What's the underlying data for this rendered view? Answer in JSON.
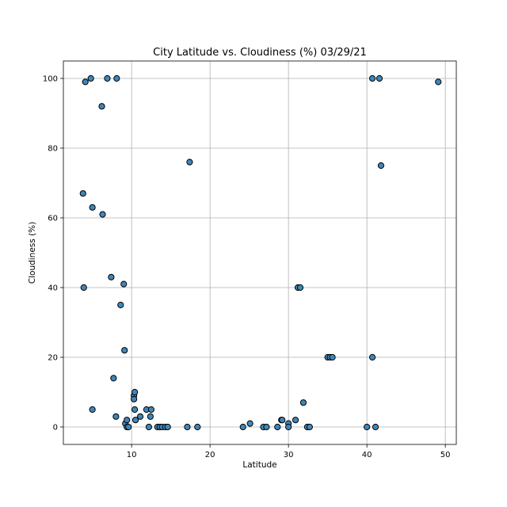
{
  "chart_data": {
    "type": "scatter",
    "title": "City Latitude vs. Cloudiness (%) 03/29/21",
    "xlabel": "Latitude",
    "ylabel": "Cloudiness (%)",
    "xlim": [
      1.3,
      51.4
    ],
    "ylim": [
      -5,
      105
    ],
    "xticks": [
      10,
      20,
      30,
      40,
      50
    ],
    "yticks": [
      0,
      20,
      40,
      60,
      80,
      100
    ],
    "grid": true,
    "marker_color": "#3f86b8",
    "edge_color": "#000000",
    "points": [
      {
        "x": 4.1,
        "y": 99
      },
      {
        "x": 4.8,
        "y": 100
      },
      {
        "x": 6.9,
        "y": 100
      },
      {
        "x": 8.1,
        "y": 100
      },
      {
        "x": 6.2,
        "y": 92
      },
      {
        "x": 3.8,
        "y": 67
      },
      {
        "x": 5.0,
        "y": 63
      },
      {
        "x": 6.3,
        "y": 61
      },
      {
        "x": 3.9,
        "y": 40
      },
      {
        "x": 7.4,
        "y": 43
      },
      {
        "x": 9.0,
        "y": 41
      },
      {
        "x": 8.6,
        "y": 35
      },
      {
        "x": 9.1,
        "y": 22
      },
      {
        "x": 7.7,
        "y": 14
      },
      {
        "x": 5.0,
        "y": 5
      },
      {
        "x": 8.0,
        "y": 3
      },
      {
        "x": 9.2,
        "y": 1
      },
      {
        "x": 9.4,
        "y": 2
      },
      {
        "x": 9.4,
        "y": 0
      },
      {
        "x": 9.6,
        "y": 0
      },
      {
        "x": 10.3,
        "y": 9
      },
      {
        "x": 10.3,
        "y": 8
      },
      {
        "x": 10.4,
        "y": 10
      },
      {
        "x": 10.4,
        "y": 5
      },
      {
        "x": 10.5,
        "y": 2
      },
      {
        "x": 11.1,
        "y": 3
      },
      {
        "x": 11.9,
        "y": 5
      },
      {
        "x": 12.5,
        "y": 5
      },
      {
        "x": 12.4,
        "y": 3
      },
      {
        "x": 12.2,
        "y": 0
      },
      {
        "x": 13.3,
        "y": 0
      },
      {
        "x": 13.6,
        "y": 0
      },
      {
        "x": 13.9,
        "y": 0
      },
      {
        "x": 14.3,
        "y": 0
      },
      {
        "x": 14.6,
        "y": 0
      },
      {
        "x": 17.1,
        "y": 0
      },
      {
        "x": 17.4,
        "y": 76
      },
      {
        "x": 18.4,
        "y": 0
      },
      {
        "x": 24.2,
        "y": 0
      },
      {
        "x": 25.1,
        "y": 1
      },
      {
        "x": 26.8,
        "y": 0
      },
      {
        "x": 27.2,
        "y": 0
      },
      {
        "x": 28.6,
        "y": 0
      },
      {
        "x": 29.1,
        "y": 2
      },
      {
        "x": 29.2,
        "y": 2
      },
      {
        "x": 30.0,
        "y": 1
      },
      {
        "x": 30.0,
        "y": 0
      },
      {
        "x": 30.9,
        "y": 2
      },
      {
        "x": 31.2,
        "y": 40
      },
      {
        "x": 31.5,
        "y": 40
      },
      {
        "x": 31.9,
        "y": 7
      },
      {
        "x": 32.4,
        "y": 0
      },
      {
        "x": 32.7,
        "y": 0
      },
      {
        "x": 35.0,
        "y": 20
      },
      {
        "x": 35.3,
        "y": 20
      },
      {
        "x": 35.6,
        "y": 20
      },
      {
        "x": 40.0,
        "y": 0
      },
      {
        "x": 40.7,
        "y": 20
      },
      {
        "x": 41.1,
        "y": 0
      },
      {
        "x": 40.7,
        "y": 100
      },
      {
        "x": 41.6,
        "y": 100
      },
      {
        "x": 41.8,
        "y": 75
      },
      {
        "x": 49.1,
        "y": 99
      }
    ]
  }
}
